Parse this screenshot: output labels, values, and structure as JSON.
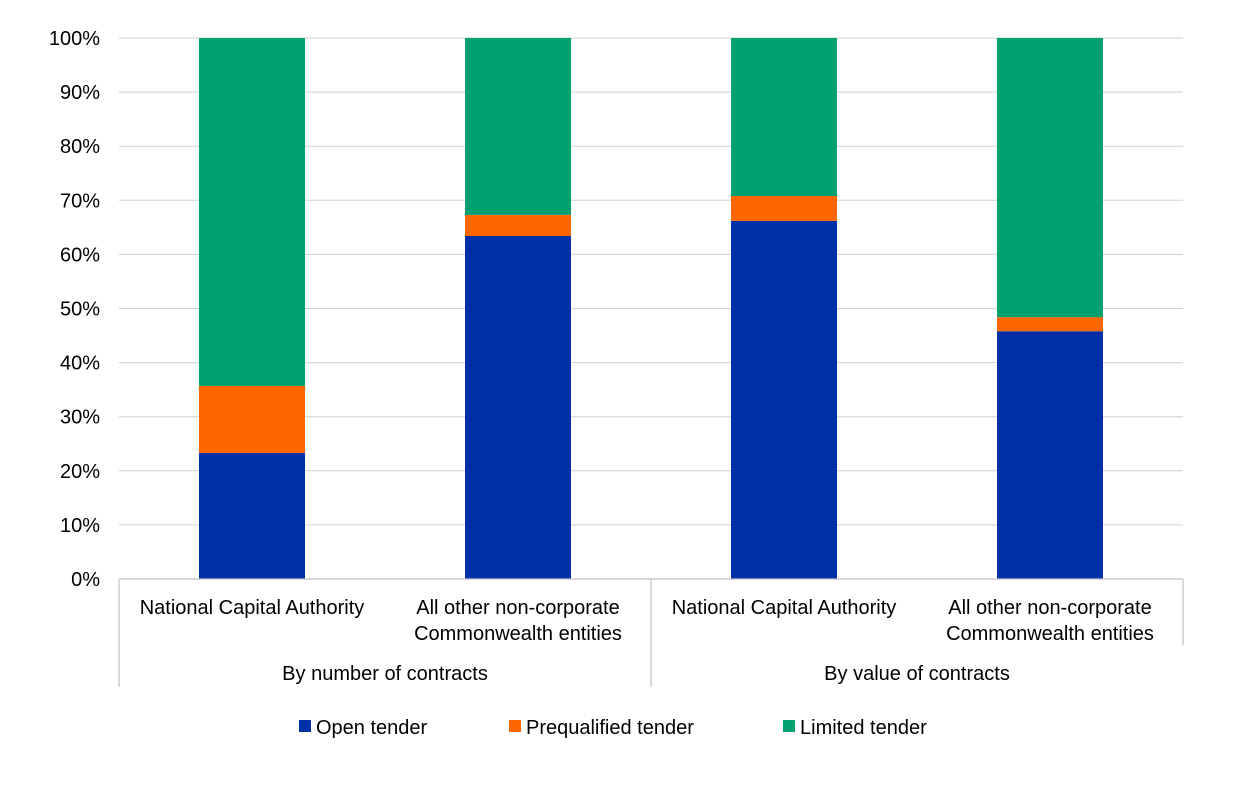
{
  "chart_data": {
    "type": "bar",
    "stacked": true,
    "percent_stacked": true,
    "groups": [
      {
        "label": "By number of contracts",
        "categories": [
          "National Capital Authority",
          "All other non-corporate Commonwealth entities"
        ]
      },
      {
        "label": "By value of contracts",
        "categories": [
          "National Capital Authority",
          "All other non-corporate Commonwealth entities"
        ]
      }
    ],
    "categories": [
      [
        "National Capital Authority"
      ],
      [
        "All other non-corporate",
        "Commonwealth entities"
      ],
      [
        "National Capital Authority"
      ],
      [
        "All other non-corporate",
        "Commonwealth entities"
      ]
    ],
    "series": [
      {
        "name": "Open tender",
        "color": "#0030A8",
        "values": [
          23.3,
          63.4,
          66.2,
          45.8
        ]
      },
      {
        "name": "Prequalified tender",
        "color": "#FF6600",
        "values": [
          12.4,
          3.9,
          4.6,
          2.6
        ]
      },
      {
        "name": "Limited tender",
        "color": "#00A071",
        "values": [
          64.3,
          32.7,
          29.2,
          51.6
        ]
      }
    ],
    "ylim": [
      0,
      100
    ],
    "yticks": [
      "0%",
      "10%",
      "20%",
      "30%",
      "40%",
      "50%",
      "60%",
      "70%",
      "80%",
      "90%",
      "100%"
    ],
    "grid": true,
    "legend_position": "bottom"
  }
}
